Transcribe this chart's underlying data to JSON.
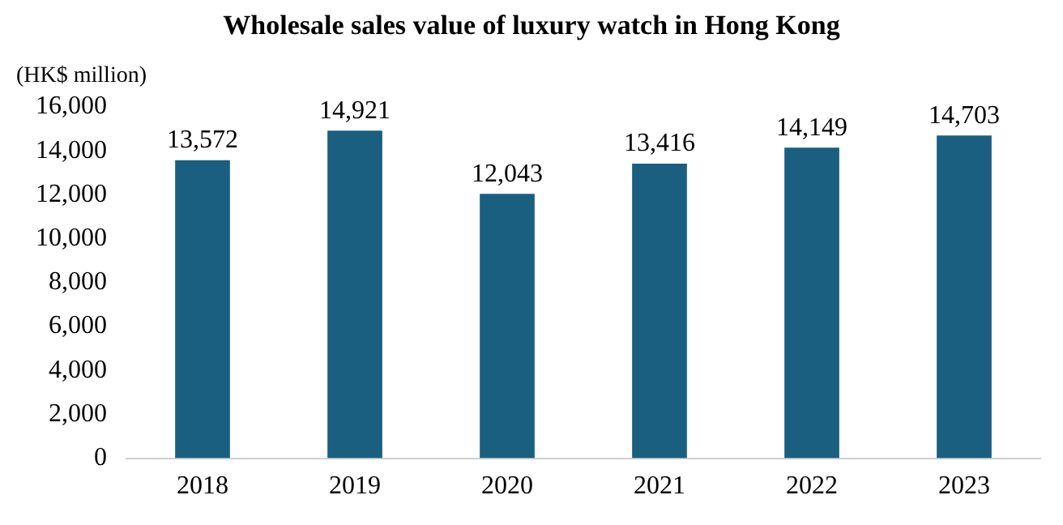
{
  "chart_data": {
    "type": "bar",
    "title": "Wholesale sales value of luxury watch in Hong Kong",
    "ylabel": "(HK$ million)",
    "categories": [
      "2018",
      "2019",
      "2020",
      "2021",
      "2022",
      "2023"
    ],
    "values": [
      13572,
      14921,
      12043,
      13416,
      14149,
      14703
    ],
    "value_labels": [
      "13,572",
      "14,921",
      "12,043",
      "13,416",
      "14,149",
      "14,703"
    ],
    "color": "#1a5f80",
    "ylim": [
      0,
      16000
    ],
    "yticks": [
      {
        "value": 0,
        "label": "0"
      },
      {
        "value": 2000,
        "label": "2,000"
      },
      {
        "value": 4000,
        "label": "4,000"
      },
      {
        "value": 6000,
        "label": "6,000"
      },
      {
        "value": 8000,
        "label": "8,000"
      },
      {
        "value": 10000,
        "label": "10,000"
      },
      {
        "value": 12000,
        "label": "12,000"
      },
      {
        "value": 14000,
        "label": "14,000"
      },
      {
        "value": 16000,
        "label": "16,000"
      }
    ],
    "grid": false,
    "legend": false
  }
}
